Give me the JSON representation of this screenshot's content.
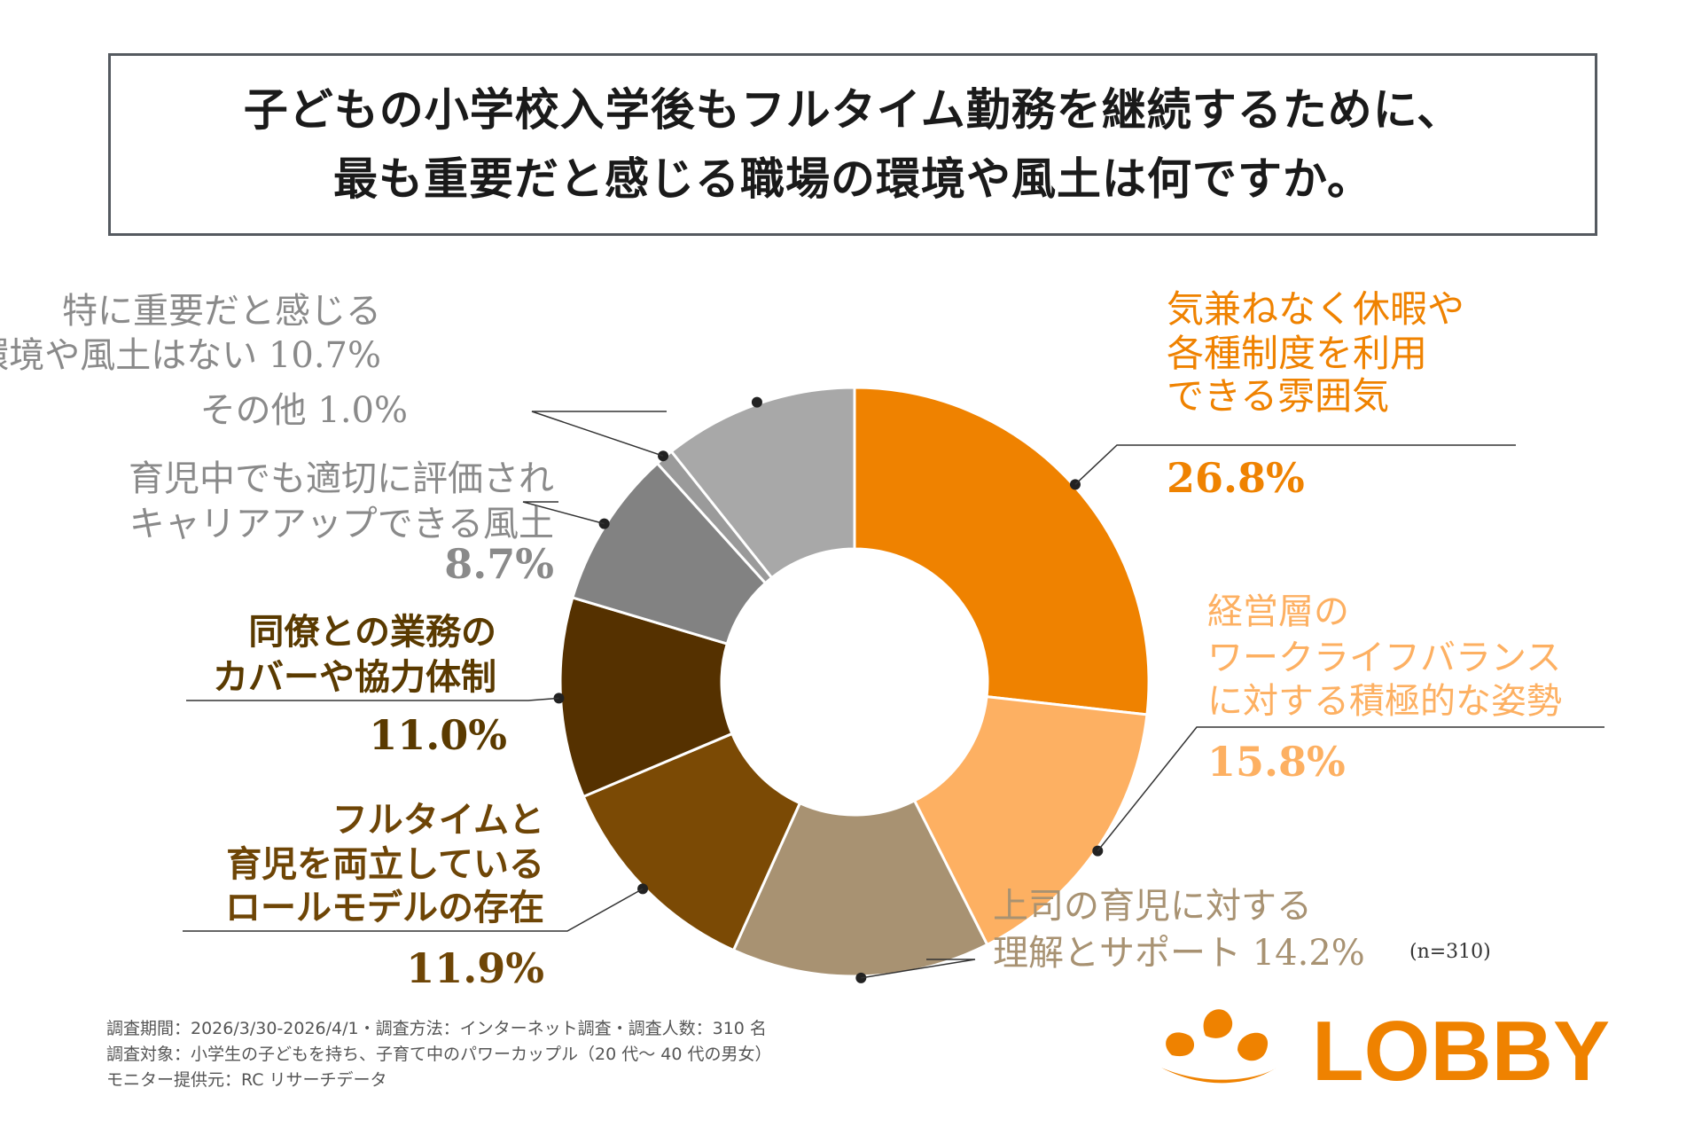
{
  "title": {
    "line1": "子どもの小学校入学後もフルタイム勤務を継続するために、",
    "line2": "最も重要だと感じる職場の環境や風土は何ですか。"
  },
  "chart_data": {
    "type": "pie",
    "subtype": "donut",
    "title": "子どもの小学校入学後もフルタイム勤務を継続するために、最も重要だと感じる職場の環境や風土は何ですか。",
    "n_label": "(n=310)",
    "slices": [
      {
        "label_lines": [
          "気兼ねなく休暇や",
          "各種制度を利用",
          "できる雰囲気"
        ],
        "value": 26.8,
        "value_label": "26.8%",
        "color": "#ef8200"
      },
      {
        "label_lines": [
          "経営層の",
          "ワークライフバランス",
          "に対する積極的な姿勢"
        ],
        "value": 15.8,
        "value_label": "15.8%",
        "color": "#fdb062"
      },
      {
        "label_lines": [
          "上司の育児に対する",
          "理解とサポート"
        ],
        "value": 14.2,
        "value_label": "14.2%",
        "color": "#a89272"
      },
      {
        "label_lines": [
          "フルタイムと",
          "育児を両立している",
          "ロールモデルの存在"
        ],
        "value": 11.9,
        "value_label": "11.9%",
        "color": "#7b4a05"
      },
      {
        "label_lines": [
          "同僚との業務の",
          "カバーや協力体制"
        ],
        "value": 11.0,
        "value_label": "11.0%",
        "color": "#553100"
      },
      {
        "label_lines": [
          "育児中でも適切に評価され",
          "キャリアアップできる風土"
        ],
        "value": 8.7,
        "value_label": "8.7%",
        "color": "#828282"
      },
      {
        "label_lines": [
          "その他"
        ],
        "value": 1.0,
        "value_label": "1.0%",
        "color": "#9a9a9a"
      },
      {
        "label_lines": [
          "特に重要だと感じる",
          "環境や風土はない"
        ],
        "value": 10.7,
        "value_label": "10.7%",
        "color": "#a8a8a8"
      }
    ],
    "label_colors": [
      "#ef8200",
      "#fdb062",
      "#a89272",
      "#6e4506",
      "#5a3a00",
      "#8a8a8a",
      "#8a8a8a",
      "#8a8a8a"
    ]
  },
  "footnote": {
    "line1": "調査期間：2026/3/30-2026/4/1・調査方法：インターネット調査・調査人数：310 名",
    "line2": "調査対象：小学生の子どもを持ち、子育て中のパワーカップル（20 代〜 40 代の男女）",
    "line3": "モニター提供元：RC リサーチデータ"
  },
  "logo": {
    "text": "LOBBY",
    "color": "#ef8200"
  }
}
